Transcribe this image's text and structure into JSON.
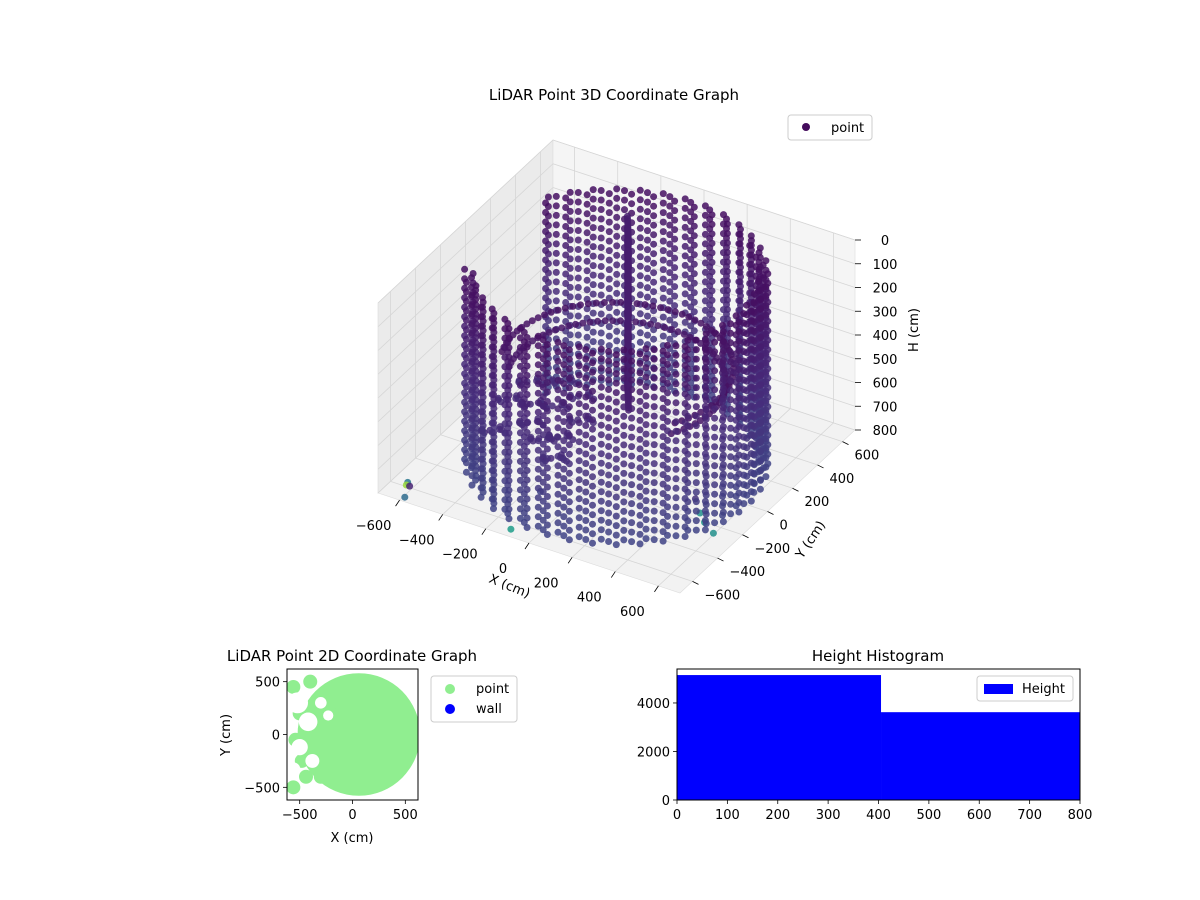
{
  "chart_data": [
    {
      "id": "chart-3d",
      "type": "scatter3d",
      "title": "LiDAR Point 3D Coordinate Graph",
      "xlabel": "X (cm)",
      "ylabel": "Y (cm)",
      "zlabel": "H (cm)",
      "xlim": [
        -700,
        700
      ],
      "ylim": [
        -700,
        700
      ],
      "zlim": [
        0,
        800
      ],
      "zaxis_inverted": true,
      "xticks": [
        "−600",
        "−400",
        "−200",
        "0",
        "200",
        "400",
        "600"
      ],
      "yticks": [
        "−600",
        "−400",
        "−200",
        "0",
        "200",
        "400",
        "600"
      ],
      "zticks": [
        "0",
        "100",
        "200",
        "300",
        "400",
        "500",
        "600",
        "700",
        "800"
      ],
      "legend": [
        {
          "label": "point",
          "color": "#440c5c"
        }
      ],
      "legend_position": "top-right",
      "colormap": "viridis",
      "grid": true,
      "structure": {
        "cylinder_wall": {
          "center": [
            0,
            0
          ],
          "radius_range": [
            560,
            620
          ],
          "arc_deg_from": -150,
          "arc_deg_to": 150,
          "height_range": [
            0,
            800
          ],
          "step_deg": 3,
          "step_h": 40
        },
        "inner_ring": {
          "radius": 470,
          "arc_deg_from": -30,
          "arc_deg_to": 200,
          "height": 400
        },
        "panel": {
          "from": [
            -60,
            200
          ],
          "to": [
            -170,
            380
          ],
          "height_range": [
            0,
            700
          ]
        },
        "clutter": [
          [
            -470,
            120,
            650
          ],
          [
            -420,
            60,
            700
          ],
          [
            -380,
            -30,
            720
          ],
          [
            -330,
            80,
            690
          ],
          [
            -300,
            -80,
            740
          ],
          [
            -260,
            0,
            760
          ],
          [
            -220,
            -120,
            780
          ],
          [
            -480,
            -160,
            720
          ],
          [
            -520,
            40,
            700
          ],
          [
            -350,
            180,
            640
          ],
          [
            -250,
            150,
            660
          ],
          [
            -200,
            60,
            700
          ]
        ],
        "outliers": [
          [
            -680,
            -520,
            900,
            0.35
          ],
          [
            -690,
            -480,
            860,
            0.4
          ],
          [
            -650,
            -560,
            820,
            0.85
          ],
          [
            -600,
            -620,
            780,
            0.1
          ],
          [
            -200,
            -500,
            900,
            0.55
          ],
          [
            250,
            200,
            980,
            0.15
          ],
          [
            350,
            100,
            1000,
            0.55
          ],
          [
            300,
            150,
            1000,
            0.5
          ],
          [
            420,
            50,
            1000,
            0.5
          ],
          [
            -150,
            -350,
            800,
            0.2
          ]
        ]
      }
    },
    {
      "id": "chart-2d",
      "type": "scatter",
      "title": "LiDAR Point 2D Coordinate Graph",
      "xlabel": "X (cm)",
      "ylabel": "Y (cm)",
      "xlim": [
        -620,
        620
      ],
      "ylim": [
        -620,
        620
      ],
      "xticks": [
        -500,
        0,
        500
      ],
      "yticks": [
        -500,
        0,
        500
      ],
      "series": [
        {
          "name": "point",
          "color": "#90ee90",
          "disc": {
            "center": [
              60,
              0
            ],
            "radius": 580
          }
        },
        {
          "name": "wall",
          "color": "#0000ff",
          "values": []
        }
      ],
      "legend_position": "outside-right"
    },
    {
      "id": "chart-hist",
      "type": "bar",
      "title": "Height Histogram",
      "bins": [
        [
          0,
          405
        ],
        [
          405,
          800
        ]
      ],
      "values": [
        5150,
        3620
      ],
      "series_name": "Height",
      "color": "#0000ff",
      "xlim": [
        0,
        800
      ],
      "ylim": [
        0,
        5400
      ],
      "xticks": [
        0,
        100,
        200,
        300,
        400,
        500,
        600,
        700,
        800
      ],
      "yticks": [
        0,
        2000,
        4000
      ],
      "legend_position": "top-right"
    }
  ]
}
